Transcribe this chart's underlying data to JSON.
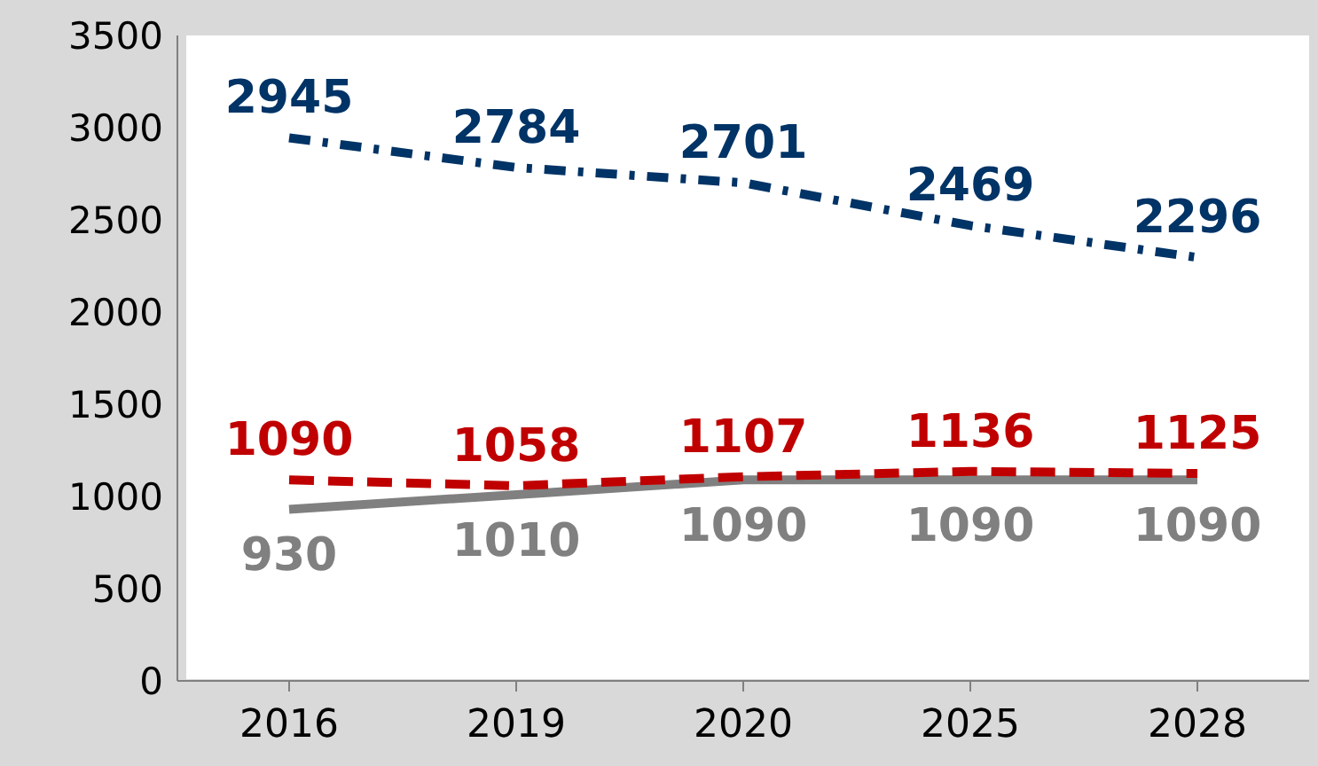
{
  "chart_data": {
    "type": "line",
    "categories": [
      "2016",
      "2019",
      "2020",
      "2025",
      "2028"
    ],
    "series": [
      {
        "color": "#003366",
        "values": [
          2945,
          2784,
          2701,
          2469,
          2296
        ],
        "line_style": "dashdot"
      },
      {
        "color": "#c00000",
        "values": [
          1090,
          1058,
          1107,
          1136,
          1125
        ],
        "line_style": "dashed"
      },
      {
        "color": "#808080",
        "values": [
          930,
          1010,
          1090,
          1090,
          1090
        ],
        "line_style": "solid"
      }
    ],
    "ylim": [
      0,
      3500
    ],
    "yticks": [
      0,
      500,
      1000,
      1500,
      2000,
      2500,
      3000,
      3500
    ],
    "grid": false,
    "marker": "none",
    "data_labels": true
  }
}
